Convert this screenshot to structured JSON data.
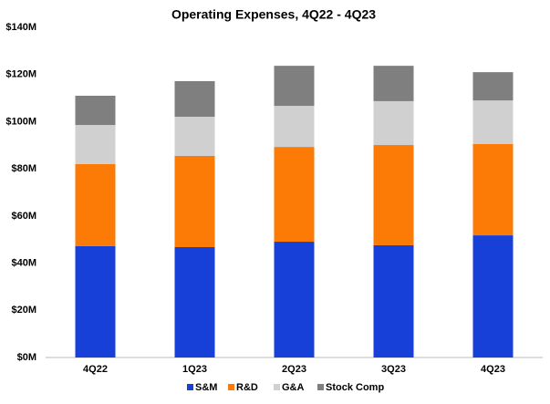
{
  "chart_data": {
    "type": "stacked_bar",
    "title": "Operating Expenses, 4Q22 - 4Q23",
    "categories": [
      "4Q22",
      "1Q23",
      "2Q23",
      "3Q23",
      "4Q23"
    ],
    "series": [
      {
        "name": "S&M",
        "color": "#1740d8",
        "values": [
          47.2,
          46.8,
          49.1,
          47.6,
          51.8
        ]
      },
      {
        "name": "R&D",
        "color": "#fb7b06",
        "values": [
          34.8,
          38.7,
          40.2,
          42.5,
          38.7
        ]
      },
      {
        "name": "G&A",
        "color": "#d0d0d0",
        "values": [
          16.6,
          16.6,
          17.4,
          18.6,
          18.5
        ]
      },
      {
        "name": "Stock Comp",
        "color": "#7f7f7f",
        "values": [
          12.4,
          15.1,
          17.0,
          15.0,
          12.0
        ]
      }
    ],
    "ylim": [
      0,
      140
    ],
    "yticks": [
      {
        "value": 0,
        "label": "$0M"
      },
      {
        "value": 20,
        "label": "$20M"
      },
      {
        "value": 40,
        "label": "$40M"
      },
      {
        "value": 60,
        "label": "$60M"
      },
      {
        "value": 80,
        "label": "$80M"
      },
      {
        "value": 100,
        "label": "$100M"
      },
      {
        "value": 120,
        "label": "$120M"
      },
      {
        "value": 140,
        "label": "$140M"
      }
    ],
    "grid": false,
    "legend": "bottom"
  }
}
